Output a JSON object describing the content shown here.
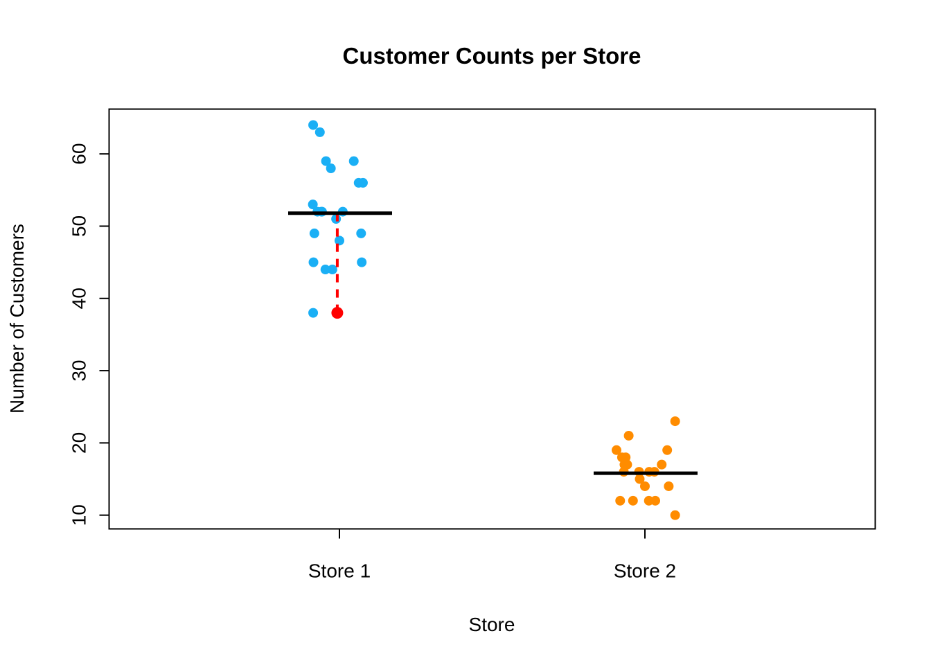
{
  "chart_data": {
    "type": "scatter",
    "title": "Customer Counts per Store",
    "xlabel": "Store",
    "ylabel": "Number of Customers",
    "categories": [
      "Store 1",
      "Store 2"
    ],
    "ylim": [
      8.1,
      66.2
    ],
    "y_ticks": [
      10,
      20,
      30,
      40,
      50,
      60
    ],
    "grid": false,
    "series": [
      {
        "color": "#1aaff5",
        "jitter": [
          -0.086,
          -0.064,
          0.047,
          -0.044,
          -0.028,
          0.063,
          0.077,
          -0.087,
          -0.059,
          0.011,
          -0.072,
          -0.057,
          -0.011,
          0.0,
          -0.082,
          0.071,
          -0.046,
          -0.023,
          0.073,
          -0.085
        ],
        "values": [
          64,
          63,
          59,
          59,
          58,
          56,
          56,
          53,
          52,
          52,
          52,
          52,
          51,
          48,
          49,
          49,
          44,
          44,
          45,
          45,
          38
        ]
      },
      {
        "color": "#ff8c00",
        "jitter": [
          -0.093,
          -0.075,
          -0.053,
          -0.067,
          -0.063,
          -0.069,
          -0.058,
          -0.081,
          -0.019,
          -0.039,
          -0.017,
          0.014,
          0.055,
          0.073,
          0.078,
          0.099,
          0.0,
          0.034,
          0.013,
          0.031,
          0.099
        ],
        "values": [
          19,
          18,
          21,
          17,
          18,
          16,
          17,
          12,
          16,
          12,
          15,
          16,
          17,
          19,
          14,
          23,
          14,
          12,
          12,
          16,
          10
        ]
      }
    ],
    "means": [
      51.8,
      15.8
    ],
    "highlight": {
      "category": "Store 1",
      "value": 38,
      "jitter": -0.007,
      "color": "#ff0000"
    }
  }
}
